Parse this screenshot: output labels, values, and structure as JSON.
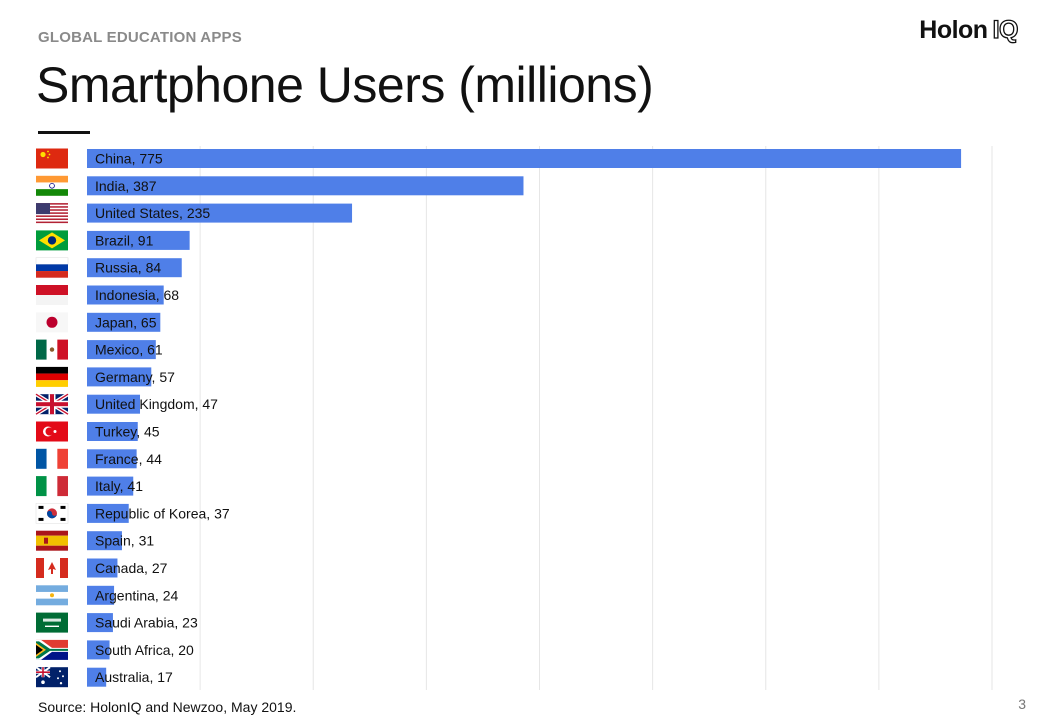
{
  "header": {
    "kicker": "GLOBAL EDUCATION APPS",
    "logo_main": "Holon",
    "logo_iq": "IQ",
    "title": "Smartphone Users (millions)"
  },
  "footer": {
    "source": "Source: HolonIQ and Newzoo, May 2019.",
    "page_number": "3"
  },
  "colors": {
    "bar": "#4f7fe8",
    "grid": "#e6e6e6",
    "text": "#111111"
  },
  "chart_data": {
    "type": "bar",
    "orientation": "horizontal",
    "title": "Smartphone Users (millions)",
    "xlabel": "",
    "ylabel": "",
    "xlim": [
      0,
      800
    ],
    "grid": true,
    "categories": [
      "China",
      "India",
      "United States",
      "Brazil",
      "Russia",
      "Indonesia",
      "Japan",
      "Mexico",
      "Germany",
      "United Kingdom",
      "Turkey",
      "France",
      "Italy",
      "Republic of Korea",
      "Spain",
      "Canada",
      "Argentina",
      "Saudi Arabia",
      "South Africa",
      "Australia"
    ],
    "values": [
      775,
      387,
      235,
      91,
      84,
      68,
      65,
      61,
      57,
      47,
      45,
      44,
      41,
      37,
      31,
      27,
      24,
      23,
      20,
      17
    ],
    "labels": [
      "China, 775",
      "India, 387",
      "United States, 235",
      "Brazil, 91",
      "Russia, 84",
      "Indonesia, 68",
      "Japan, 65",
      "Mexico, 61",
      "Germany, 57",
      "United Kingdom, 47",
      "Turkey, 45",
      "France, 44",
      "Italy, 41",
      "Republic of Korea, 37",
      "Spain, 31",
      "Canada, 27",
      "Argentina, 24",
      "Saudi Arabia, 23",
      "South Africa, 20",
      "Australia, 17"
    ],
    "flags": [
      "china-flag-icon",
      "india-flag-icon",
      "united-states-flag-icon",
      "brazil-flag-icon",
      "russia-flag-icon",
      "indonesia-flag-icon",
      "japan-flag-icon",
      "mexico-flag-icon",
      "germany-flag-icon",
      "united-kingdom-flag-icon",
      "turkey-flag-icon",
      "france-flag-icon",
      "italy-flag-icon",
      "republic-of-korea-flag-icon",
      "spain-flag-icon",
      "canada-flag-icon",
      "argentina-flag-icon",
      "saudi-arabia-flag-icon",
      "south-africa-flag-icon",
      "australia-flag-icon"
    ]
  }
}
